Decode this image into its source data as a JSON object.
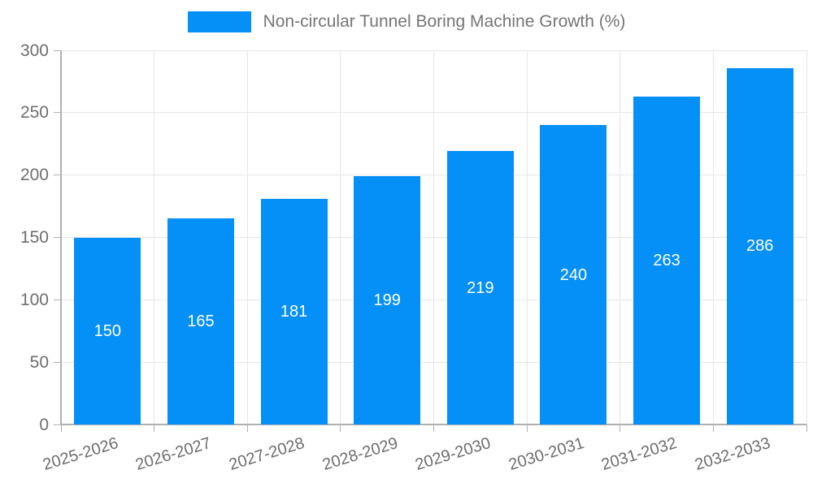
{
  "legend": {
    "label": "Non-circular Tunnel Boring Machine Growth (%)",
    "swatch_color": "#0590F8"
  },
  "chart_data": {
    "type": "bar",
    "title": "Non-circular Tunnel Boring Machine Growth (%)",
    "series": [
      {
        "name": "Non-circular Tunnel Boring Machine Growth (%)",
        "values": [
          150,
          165,
          181,
          199,
          219,
          240,
          263,
          286
        ]
      }
    ],
    "categories": [
      "2025-2026",
      "2026-2027",
      "2027-2028",
      "2028-2029",
      "2029-2030",
      "2030-2031",
      "2031-2032",
      "2032-2033"
    ],
    "value_labels": [
      "150",
      "165",
      "181",
      "199",
      "219",
      "240",
      "263",
      "286"
    ],
    "xlabel": "",
    "ylabel": "",
    "ylim": [
      0,
      300
    ],
    "yticks": [
      0,
      50,
      100,
      150,
      200,
      250,
      300
    ],
    "grid": "both",
    "legend_position": "top",
    "bar_color": "#0590F8",
    "value_label_color": "#FFFFFF",
    "grid_color": "#E6E6E6",
    "axis_color": "#B0B0B0",
    "tick_label_color": "#6E6E6E",
    "legend_text_color": "#757575"
  }
}
